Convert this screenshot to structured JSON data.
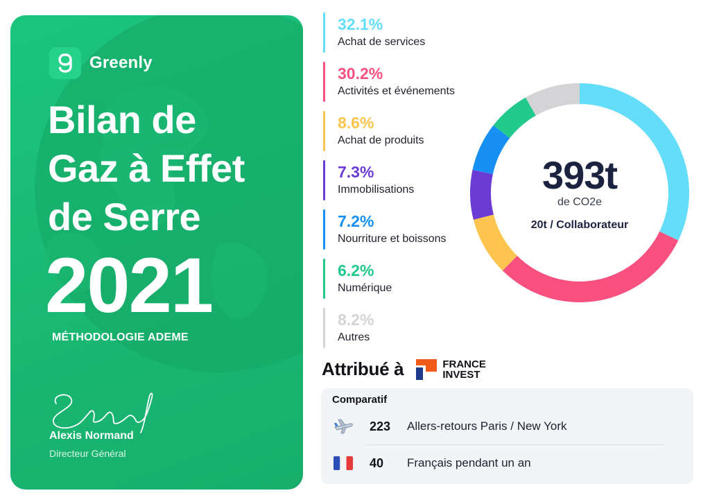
{
  "brand": {
    "name": "Greenly"
  },
  "title": {
    "line1": "Bilan de",
    "line2": "Gaz à Effet",
    "line3": "de Serre"
  },
  "year": "2021",
  "methodology": "MÉTHODOLOGIE ADEME",
  "signer": {
    "name": "Alexis Normand",
    "role": "Directeur Général"
  },
  "chart_data": {
    "type": "pie",
    "title": "",
    "center_value": "393t",
    "center_unit": "de CO2e",
    "center_subtitle": "20t / Collaborateur",
    "legend_position": "left",
    "slices": [
      {
        "label": "Achat de services",
        "value": 32.1,
        "display": "32.1%",
        "color": "#63ddfa"
      },
      {
        "label": "Activités et événements",
        "value": 30.2,
        "display": "30.2%",
        "color": "#f8507f"
      },
      {
        "label": "Achat de produits",
        "value": 8.6,
        "display": "8.6%",
        "color": "#fdc44f"
      },
      {
        "label": "Immobilisations",
        "value": 7.3,
        "display": "7.3%",
        "color": "#6c3bd4"
      },
      {
        "label": "Nourriture et boissons",
        "value": 7.2,
        "display": "7.2%",
        "color": "#1790f4"
      },
      {
        "label": "Numérique",
        "value": 6.2,
        "display": "6.2%",
        "color": "#21c98a"
      },
      {
        "label": "Autres",
        "value": 8.2,
        "display": "8.2%",
        "color": "#d4d4d6"
      }
    ]
  },
  "attribution": {
    "label": "Attribué à",
    "org_line1": "FRANCE",
    "org_line2": "INVEST"
  },
  "comparatif": {
    "title": "Comparatif",
    "rows": [
      {
        "icon": "airplane-icon",
        "value": "223",
        "text": "Allers-retours Paris / New York"
      },
      {
        "icon": "french-flag-icon",
        "value": "40",
        "text": "Français pendant un an"
      }
    ]
  }
}
